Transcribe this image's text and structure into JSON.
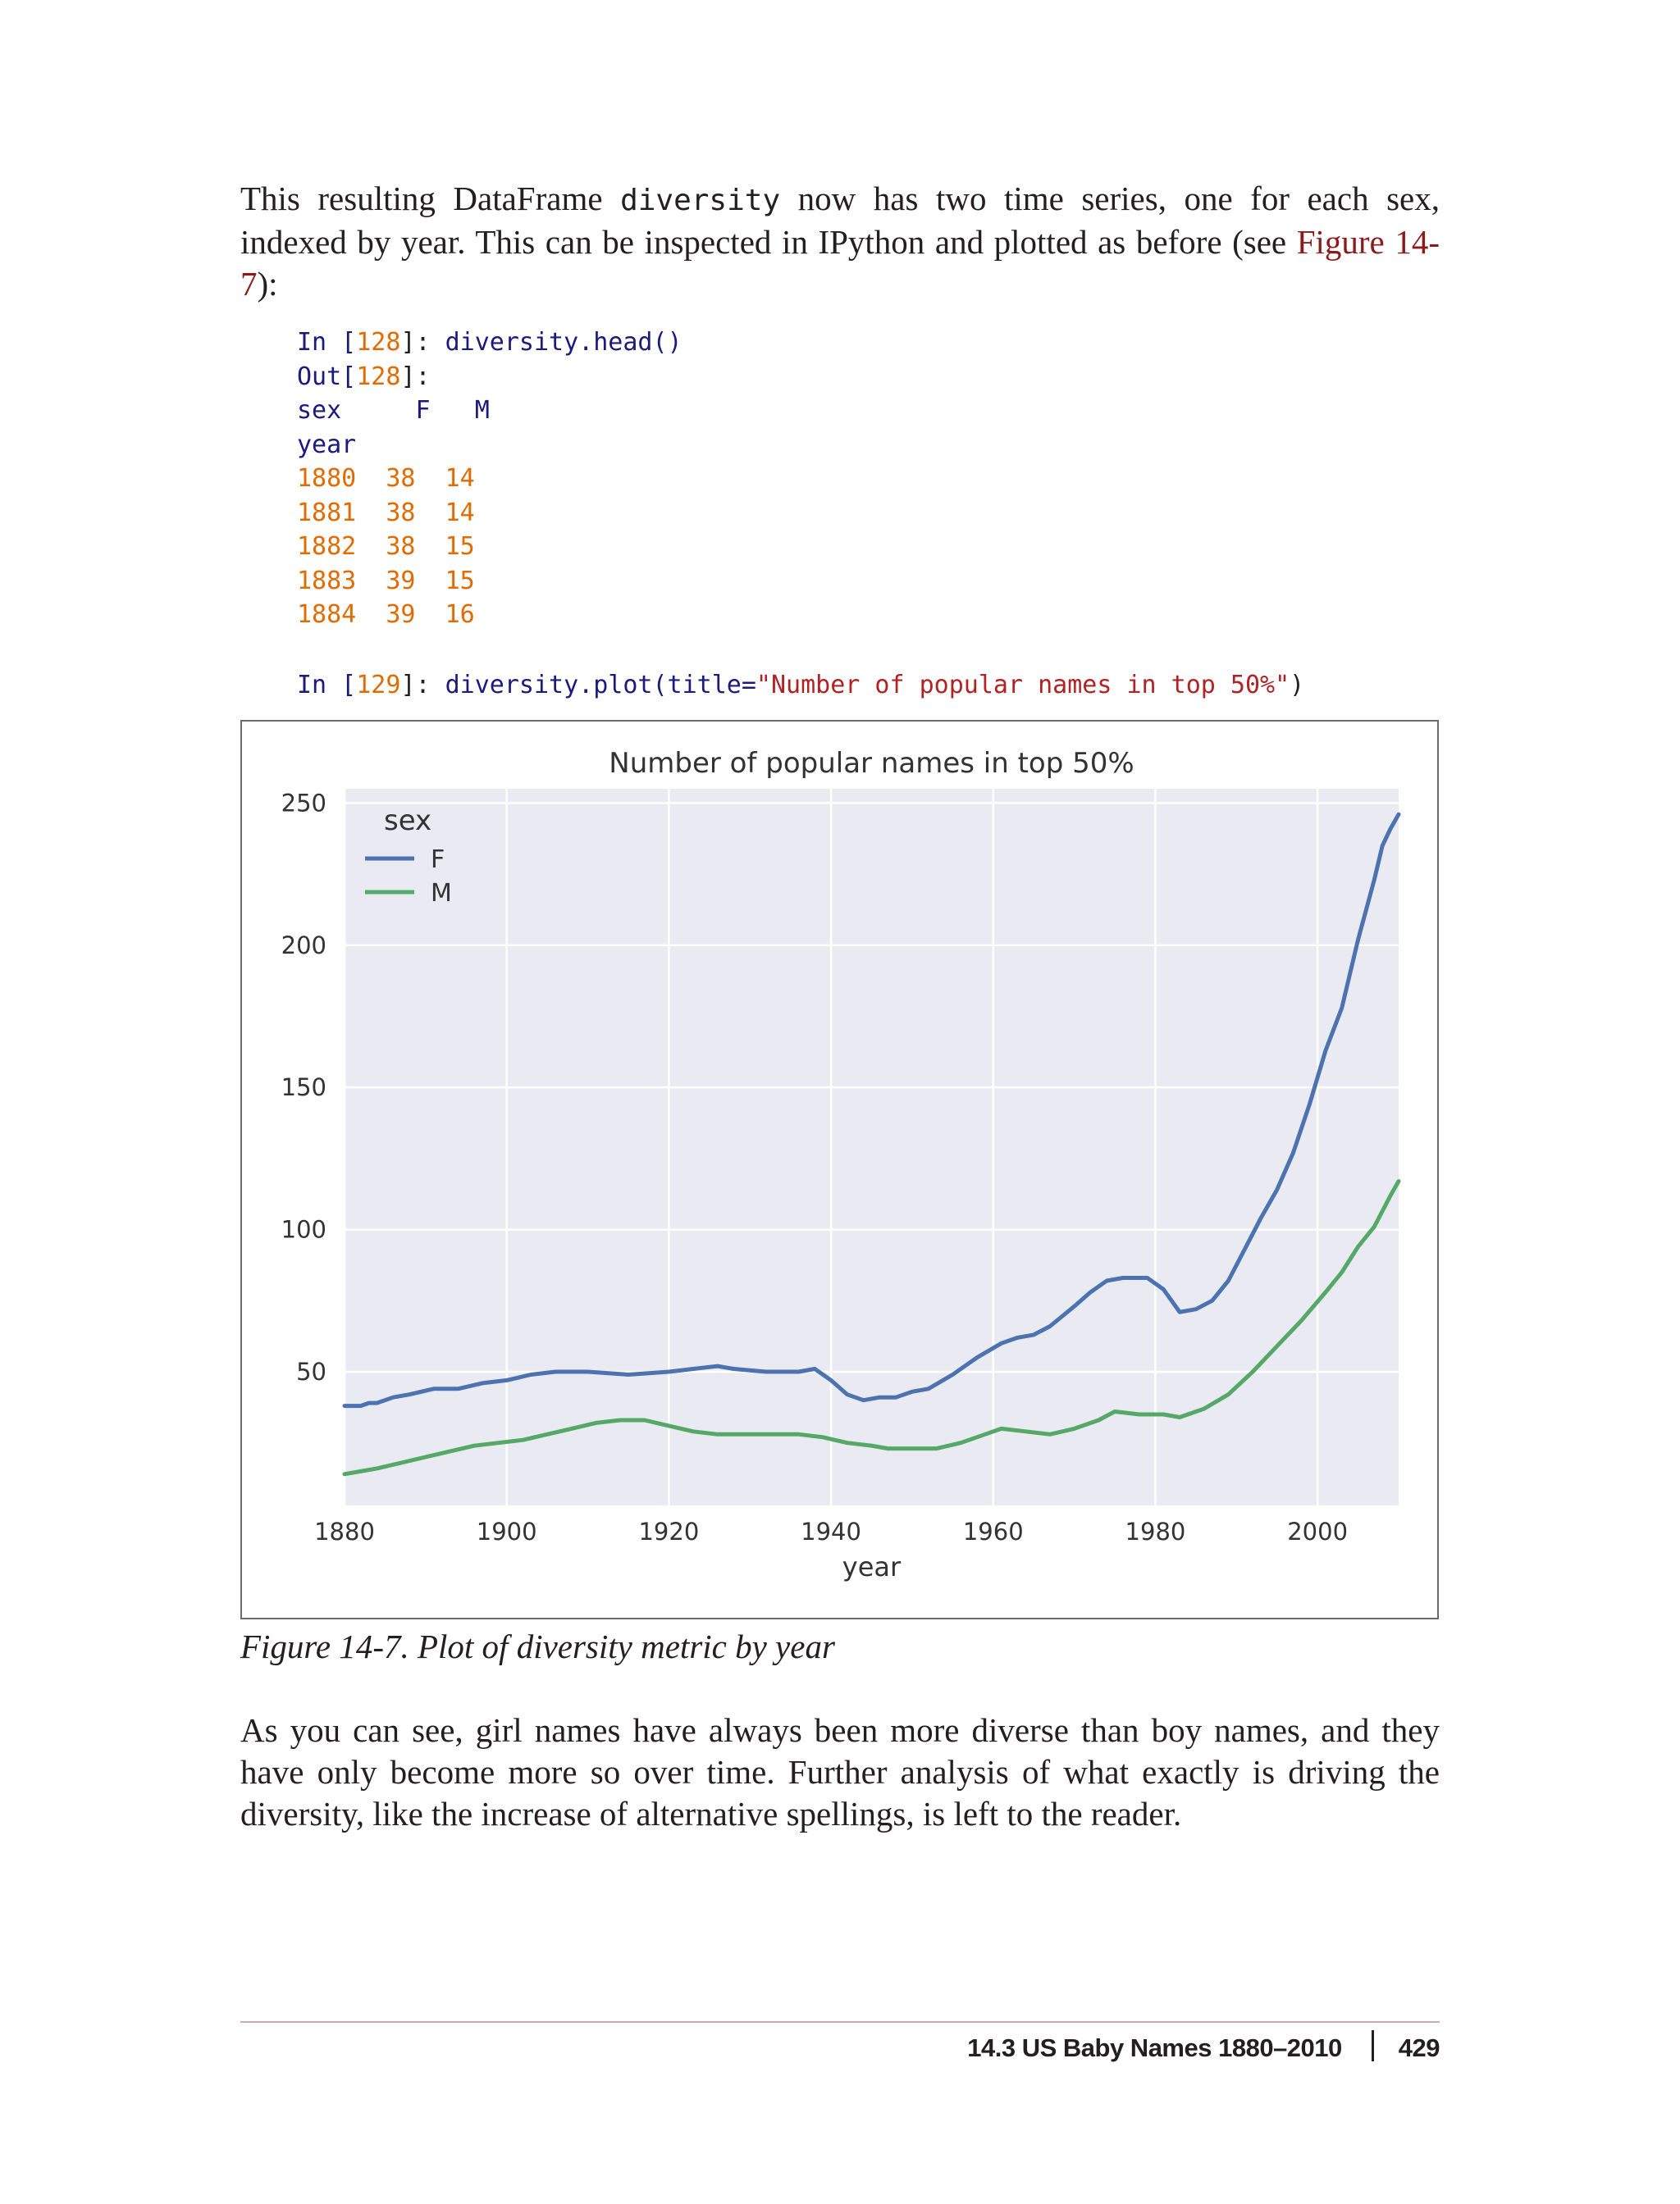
{
  "intro": {
    "before_code": "This resulting DataFrame ",
    "code_word": "diversity",
    "after_code": " now has two time series, one for each sex, indexed by year. This can be inspected in IPython and plotted as before (see ",
    "link": "Figure 14-7",
    "end": "):"
  },
  "code1": {
    "in_prompt": "In [",
    "in_num": "128",
    "in_close": "]: ",
    "in_code": "diversity.head()",
    "out_prompt": "Out[",
    "out_num": "128",
    "out_close": "]:",
    "header": "sex     F   M",
    "index_name": "year",
    "rows": [
      {
        "year": "1880",
        "F": "38",
        "M": "14"
      },
      {
        "year": "1881",
        "F": "38",
        "M": "14"
      },
      {
        "year": "1882",
        "F": "38",
        "M": "15"
      },
      {
        "year": "1883",
        "F": "39",
        "M": "15"
      },
      {
        "year": "1884",
        "F": "39",
        "M": "16"
      }
    ]
  },
  "code2": {
    "in_prompt": "In [",
    "in_num": "129",
    "in_close": "]: ",
    "call": "diversity.plot(title=",
    "arg": "\"Number of popular names in top 50%\"",
    "close": ")"
  },
  "chart_data": {
    "type": "line",
    "title": "Number of popular names in top 50%",
    "xlabel": "year",
    "ylabel": "",
    "xlim": [
      1880,
      2010
    ],
    "ylim": [
      3,
      255
    ],
    "xticks": [
      1880,
      1900,
      1920,
      1940,
      1960,
      1980,
      2000
    ],
    "yticks": [
      50,
      100,
      150,
      200,
      250
    ],
    "grid": true,
    "legend": {
      "title": "sex",
      "placement": "top-left"
    },
    "colors": {
      "F": "#4c72b0",
      "M": "#55a868",
      "plot_bg": "#eaeaf2"
    },
    "series": [
      {
        "name": "F",
        "points": [
          [
            1880,
            38
          ],
          [
            1881,
            38
          ],
          [
            1882,
            38
          ],
          [
            1883,
            39
          ],
          [
            1884,
            39
          ],
          [
            1886,
            41
          ],
          [
            1888,
            42
          ],
          [
            1891,
            44
          ],
          [
            1894,
            44
          ],
          [
            1897,
            46
          ],
          [
            1900,
            47
          ],
          [
            1903,
            49
          ],
          [
            1906,
            50
          ],
          [
            1910,
            50
          ],
          [
            1915,
            49
          ],
          [
            1920,
            50
          ],
          [
            1923,
            51
          ],
          [
            1926,
            52
          ],
          [
            1928,
            51
          ],
          [
            1932,
            50
          ],
          [
            1936,
            50
          ],
          [
            1938,
            51
          ],
          [
            1940,
            47
          ],
          [
            1942,
            42
          ],
          [
            1944,
            40
          ],
          [
            1946,
            41
          ],
          [
            1948,
            41
          ],
          [
            1950,
            43
          ],
          [
            1952,
            44
          ],
          [
            1955,
            49
          ],
          [
            1958,
            55
          ],
          [
            1961,
            60
          ],
          [
            1963,
            62
          ],
          [
            1965,
            63
          ],
          [
            1967,
            66
          ],
          [
            1970,
            73
          ],
          [
            1972,
            78
          ],
          [
            1974,
            82
          ],
          [
            1976,
            83
          ],
          [
            1979,
            83
          ],
          [
            1981,
            79
          ],
          [
            1983,
            71
          ],
          [
            1985,
            72
          ],
          [
            1987,
            75
          ],
          [
            1989,
            82
          ],
          [
            1991,
            93
          ],
          [
            1993,
            104
          ],
          [
            1995,
            114
          ],
          [
            1997,
            127
          ],
          [
            1999,
            144
          ],
          [
            2001,
            163
          ],
          [
            2003,
            178
          ],
          [
            2005,
            202
          ],
          [
            2007,
            223
          ],
          [
            2008,
            235
          ],
          [
            2009,
            241
          ],
          [
            2010,
            246
          ]
        ]
      },
      {
        "name": "M",
        "points": [
          [
            1880,
            14
          ],
          [
            1882,
            15
          ],
          [
            1884,
            16
          ],
          [
            1887,
            18
          ],
          [
            1890,
            20
          ],
          [
            1893,
            22
          ],
          [
            1896,
            24
          ],
          [
            1899,
            25
          ],
          [
            1902,
            26
          ],
          [
            1905,
            28
          ],
          [
            1908,
            30
          ],
          [
            1911,
            32
          ],
          [
            1914,
            33
          ],
          [
            1917,
            33
          ],
          [
            1920,
            31
          ],
          [
            1923,
            29
          ],
          [
            1926,
            28
          ],
          [
            1931,
            28
          ],
          [
            1936,
            28
          ],
          [
            1939,
            27
          ],
          [
            1942,
            25
          ],
          [
            1945,
            24
          ],
          [
            1947,
            23
          ],
          [
            1950,
            23
          ],
          [
            1953,
            23
          ],
          [
            1956,
            25
          ],
          [
            1959,
            28
          ],
          [
            1961,
            30
          ],
          [
            1964,
            29
          ],
          [
            1967,
            28
          ],
          [
            1970,
            30
          ],
          [
            1973,
            33
          ],
          [
            1975,
            36
          ],
          [
            1978,
            35
          ],
          [
            1981,
            35
          ],
          [
            1983,
            34
          ],
          [
            1986,
            37
          ],
          [
            1989,
            42
          ],
          [
            1992,
            50
          ],
          [
            1995,
            59
          ],
          [
            1998,
            68
          ],
          [
            2001,
            78
          ],
          [
            2003,
            85
          ],
          [
            2005,
            94
          ],
          [
            2007,
            101
          ],
          [
            2009,
            112
          ],
          [
            2010,
            117
          ]
        ]
      }
    ]
  },
  "caption": "Figure 14-7. Plot of diversity metric by year",
  "outro": "As you can see, girl names have always been more diverse than boy names, and they have only become more so over time. Further analysis of what exactly is driving the diversity, like the increase of alternative spellings, is left to the reader.",
  "footer": {
    "section": "14.3 US Baby Names 1880–2010",
    "page": "429"
  }
}
